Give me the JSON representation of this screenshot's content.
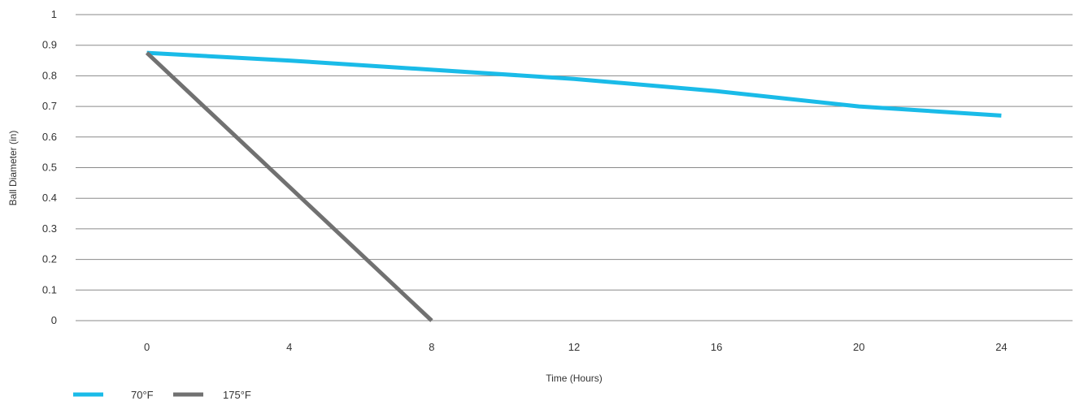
{
  "chart_data": {
    "type": "line",
    "title": "",
    "xlabel": "Time (Hours)",
    "ylabel": "Ball Diameter (in)",
    "x_ticks": [
      0,
      4,
      8,
      12,
      16,
      20,
      24
    ],
    "y_ticks": [
      0,
      0.1,
      0.2,
      0.3,
      0.4,
      0.5,
      0.6,
      0.7,
      0.8,
      0.9,
      1
    ],
    "y_tick_labels": [
      "0",
      "0.1",
      "0.2",
      "0.3",
      "0.4",
      "0.5",
      "0.6",
      "0.7",
      "0.8",
      "0.9",
      "1"
    ],
    "xlim": [
      -2,
      26
    ],
    "ylim": [
      0,
      1
    ],
    "grid": "horizontal",
    "legend_position": "bottom-left",
    "series": [
      {
        "name": "70°F",
        "color": "#1ABBE8",
        "x": [
          0,
          4,
          8,
          12,
          16,
          20,
          24
        ],
        "y": [
          0.875,
          0.85,
          0.82,
          0.79,
          0.75,
          0.7,
          0.67
        ]
      },
      {
        "name": "175°F",
        "color": "#717171",
        "x": [
          0,
          8
        ],
        "y": [
          0.875,
          0
        ]
      }
    ]
  }
}
